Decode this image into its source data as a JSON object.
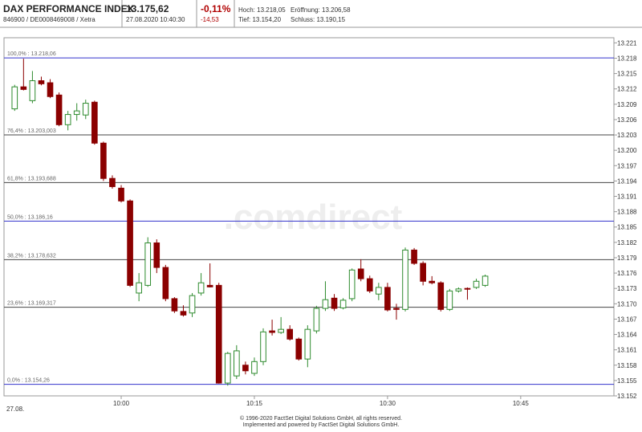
{
  "header": {
    "title": "DAX PERFORMANCE INDEX",
    "ids": "846900 / DE0008469008 / Xetra",
    "price": "13.175,62",
    "timestamp": "27.08.2020 10:40:30",
    "change_pct": "-0,11%",
    "change_abs": "-14,53",
    "high": "Hoch: 13.218,05",
    "low": "Tief: 13.154,20",
    "open": "Eröffnung: 13.206,58",
    "close": "Schluss: 13.190,15"
  },
  "chart_data": {
    "type": "candlestick",
    "watermark": ".comdirect",
    "date_label": "27.08.",
    "up_color": "#2e8b2e",
    "down_color": "#8b0000",
    "x": [
      588,
      589,
      590,
      591,
      592,
      593,
      594,
      595,
      596,
      597,
      598,
      599,
      600,
      601,
      602,
      603,
      604,
      605,
      606,
      607,
      608,
      609,
      610,
      611,
      612,
      613,
      614,
      615,
      616,
      617,
      618,
      619,
      620,
      621,
      622,
      623,
      624,
      625,
      626,
      627,
      628,
      629,
      630,
      631,
      632,
      633,
      634,
      635,
      636,
      637,
      638,
      639,
      640,
      641
    ],
    "open": [
      13208.1,
      13212.4,
      13209.7,
      13213.6,
      13213.2,
      13210.8,
      13205.0,
      13207.0,
      13206.9,
      13209.4,
      13201.4,
      13194.5,
      13192.6,
      13190.1,
      13172.1,
      13173.6,
      13181.9,
      13177.1,
      13171.0,
      13168.5,
      13168.2,
      13172.1,
      13173.6,
      13173.6,
      13154.5,
      13155.9,
      13158.0,
      13156.4,
      13158.7,
      13164.7,
      13164.4,
      13165.0,
      13163.1,
      13159.2,
      13164.7,
      13169.1,
      13171.1,
      13169.2,
      13171.0,
      13176.8,
      13174.9,
      13171.9,
      13173.2,
      13169.1,
      13168.9,
      13180.5,
      13177.9,
      13174.4,
      13174.1,
      13168.9,
      13172.5,
      13173.0,
      13173.2,
      13173.6
    ],
    "high": [
      13212.8,
      13217.9,
      13215.5,
      13214.4,
      13213.9,
      13211.3,
      13207.7,
      13209.2,
      13209.9,
      13209.7,
      13201.7,
      13195.1,
      13193.2,
      13190.4,
      13176.0,
      13183.0,
      13182.6,
      13177.6,
      13171.3,
      13169.7,
      13172.1,
      13176.0,
      13177.9,
      13174.1,
      13160.6,
      13161.9,
      13158.7,
      13159.5,
      13165.2,
      13166.9,
      13167.4,
      13165.8,
      13163.4,
      13165.8,
      13169.6,
      13174.4,
      13171.9,
      13171.1,
      13176.9,
      13178.7,
      13175.5,
      13174.1,
      13174.1,
      13170.0,
      13181.0,
      13180.9,
      13178.3,
      13175.4,
      13174.4,
      13172.9,
      13173.2,
      13173.2,
      13174.9,
      13175.7
    ],
    "low": [
      13207.7,
      13211.7,
      13209.2,
      13212.7,
      13210.2,
      13204.7,
      13203.9,
      13205.8,
      13206.1,
      13201.1,
      13194.0,
      13192.5,
      13189.8,
      13173.3,
      13170.5,
      13173.3,
      13176.0,
      13170.5,
      13168.2,
      13167.5,
      13167.4,
      13171.6,
      13173.2,
      13154.4,
      13154.0,
      13155.3,
      13156.2,
      13155.9,
      13158.0,
      13163.8,
      13164.1,
      13162.8,
      13158.9,
      13157.6,
      13164.2,
      13168.6,
      13168.6,
      13168.9,
      13170.5,
      13174.4,
      13172.1,
      13170.7,
      13168.5,
      13166.9,
      13168.5,
      13177.6,
      13173.6,
      13173.8,
      13168.5,
      13168.6,
      13172.2,
      13170.8,
      13172.9,
      13173.3
    ],
    "close": [
      13212.4,
      13211.9,
      13213.6,
      13213.0,
      13210.5,
      13205.0,
      13207.0,
      13207.7,
      13209.2,
      13201.4,
      13194.5,
      13192.9,
      13190.1,
      13173.6,
      13174.1,
      13181.9,
      13177.1,
      13171.0,
      13168.6,
      13167.8,
      13171.6,
      13174.1,
      13173.3,
      13154.5,
      13160.3,
      13160.8,
      13156.9,
      13158.7,
      13164.5,
      13164.4,
      13165.0,
      13163.1,
      13159.2,
      13165.0,
      13169.1,
      13170.8,
      13169.1,
      13170.7,
      13176.6,
      13174.9,
      13172.5,
      13173.2,
      13168.8,
      13168.9,
      13180.5,
      13177.9,
      13174.4,
      13174.1,
      13168.9,
      13172.5,
      13172.9,
      13172.9,
      13174.4,
      13175.4
    ],
    "levels": [
      {
        "value": 13218.06,
        "label": "100,0% : 13.218,06",
        "color": "#3333cc"
      },
      {
        "value": 13203.003,
        "label": "76,4% : 13.203,003",
        "color": "#444444"
      },
      {
        "value": 13193.688,
        "label": "61,8% : 13.193,688",
        "color": "#444444"
      },
      {
        "value": 13186.16,
        "label": "50,0% : 13.186,16",
        "color": "#3333cc"
      },
      {
        "value": 13178.632,
        "label": "38,2% : 13.178,632",
        "color": "#444444"
      },
      {
        "value": 13169.317,
        "label": "23,6% : 13.169,317",
        "color": "#444444"
      },
      {
        "value": 13154.26,
        "label": "0,0% : 13.154,26",
        "color": "#3333cc"
      }
    ],
    "xlim": [
      586.8,
      655.5
    ],
    "xticks": [
      {
        "value": 600,
        "label": "10:00"
      },
      {
        "value": 615,
        "label": "10:15"
      },
      {
        "value": 630,
        "label": "10:30"
      },
      {
        "value": 645,
        "label": "10:45"
      }
    ],
    "ylim": [
      13152,
      13222
    ],
    "yticks": [
      {
        "value": 13152,
        "label": "13.152"
      },
      {
        "value": 13155,
        "label": "13.155"
      },
      {
        "value": 13158,
        "label": "13.158"
      },
      {
        "value": 13161,
        "label": "13.161"
      },
      {
        "value": 13164,
        "label": "13.164"
      },
      {
        "value": 13167,
        "label": "13.167"
      },
      {
        "value": 13170,
        "label": "13.170"
      },
      {
        "value": 13173,
        "label": "13.173"
      },
      {
        "value": 13176,
        "label": "13.176"
      },
      {
        "value": 13179,
        "label": "13.179"
      },
      {
        "value": 13182,
        "label": "13.182"
      },
      {
        "value": 13185,
        "label": "13.185"
      },
      {
        "value": 13188,
        "label": "13.188"
      },
      {
        "value": 13191,
        "label": "13.191"
      },
      {
        "value": 13194,
        "label": "13.194"
      },
      {
        "value": 13197,
        "label": "13.197"
      },
      {
        "value": 13200,
        "label": "13.200"
      },
      {
        "value": 13203,
        "label": "13.203"
      },
      {
        "value": 13206,
        "label": "13.206"
      },
      {
        "value": 13209,
        "label": "13.209"
      },
      {
        "value": 13212,
        "label": "13.212"
      },
      {
        "value": 13215,
        "label": "13.215"
      },
      {
        "value": 13218,
        "label": "13.218"
      },
      {
        "value": 13221,
        "label": "13.221"
      }
    ],
    "footer": [
      "© 1996-2020 FactSet Digital Solutions GmbH, all rights reserved.",
      "Implemented and powered by FactSet Digital Solutions GmbH."
    ]
  }
}
